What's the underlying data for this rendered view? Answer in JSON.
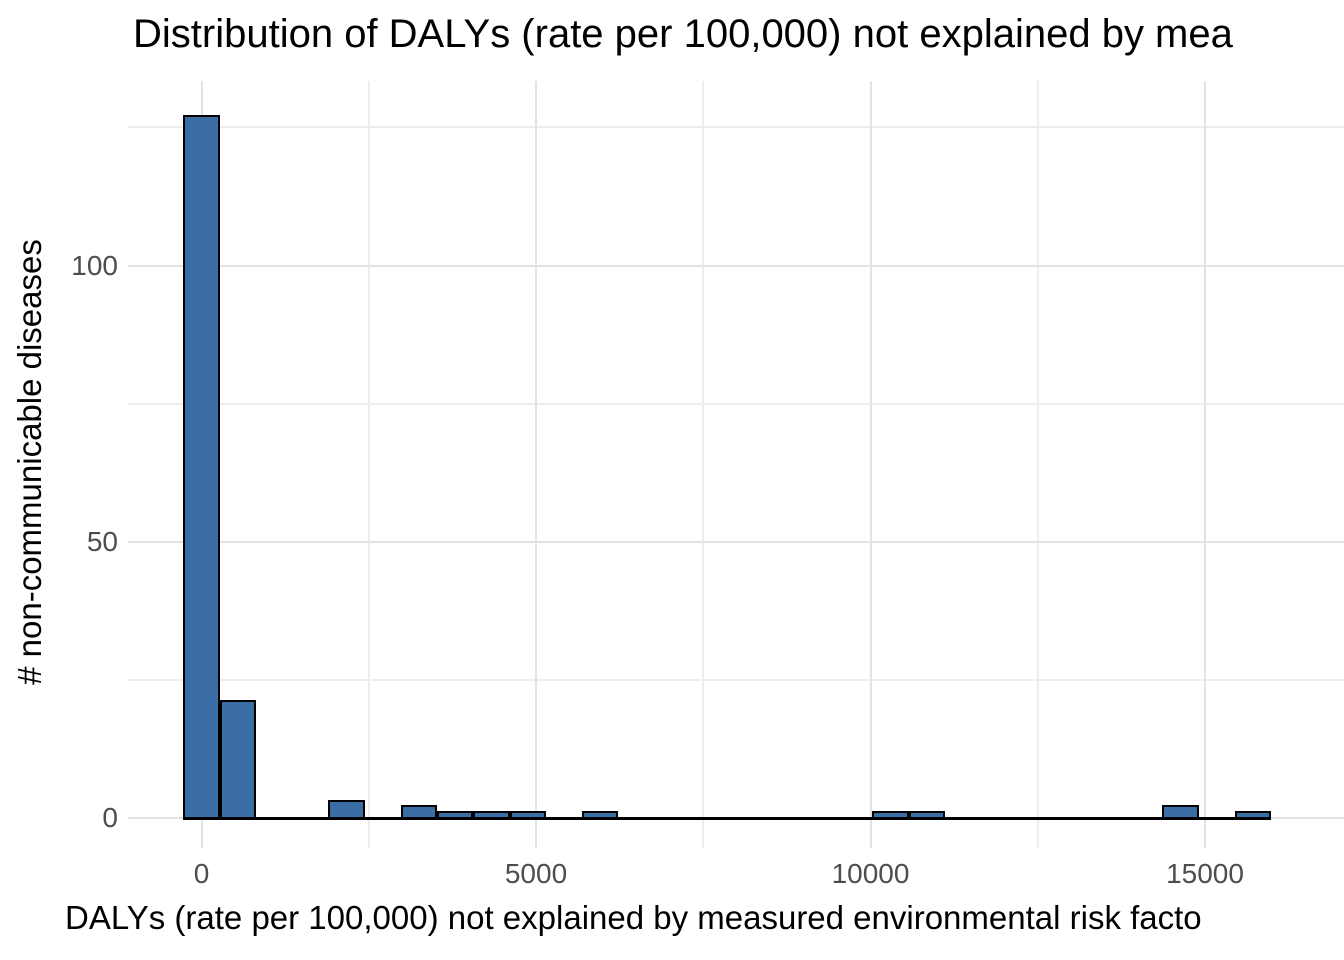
{
  "chart_data": {
    "type": "histogram",
    "title": "Distribution of DALYs (rate per 100,000) not explained by mea",
    "xlabel": "DALYs (rate per 100,000) not explained by measured environmental risk facto",
    "ylabel": "# non-communicable diseases",
    "bin_width": 542,
    "bins": [
      {
        "center": 0,
        "count": 127
      },
      {
        "center": 542,
        "count": 21
      },
      {
        "center": 2168,
        "count": 3
      },
      {
        "center": 3252,
        "count": 2
      },
      {
        "center": 3794,
        "count": 1
      },
      {
        "center": 4336,
        "count": 1
      },
      {
        "center": 4878,
        "count": 1
      },
      {
        "center": 5962,
        "count": 1
      },
      {
        "center": 10298,
        "count": 1
      },
      {
        "center": 10840,
        "count": 1
      },
      {
        "center": 14634,
        "count": 2
      },
      {
        "center": 15718,
        "count": 1
      }
    ],
    "x_ticks": [
      {
        "label": "0",
        "value": 0
      },
      {
        "label": "5000",
        "value": 5000
      },
      {
        "label": "10000",
        "value": 10000
      },
      {
        "label": "15000",
        "value": 15000
      }
    ],
    "x_minor_gridlines": [
      2500,
      7500,
      12500
    ],
    "y_ticks": [
      {
        "label": "0",
        "value": 0
      },
      {
        "label": "50",
        "value": 50
      },
      {
        "label": "100",
        "value": 100
      }
    ],
    "y_minor_gridlines": [
      25,
      75,
      125
    ],
    "xlim": [
      -1100,
      17100
    ],
    "ylim": [
      -6,
      134
    ],
    "grid": "major and minor, light grey on white, no axis lines or tick marks",
    "legend_position": "none",
    "colors": {
      "bar_fill": "#3B6EA5",
      "bar_stroke": "#000000",
      "grid_major": "#E3E3E3",
      "grid_minor": "#EDEDED",
      "tick_text": "#4D4D4D",
      "title_text": "#000000",
      "background": "#FFFFFF"
    }
  }
}
